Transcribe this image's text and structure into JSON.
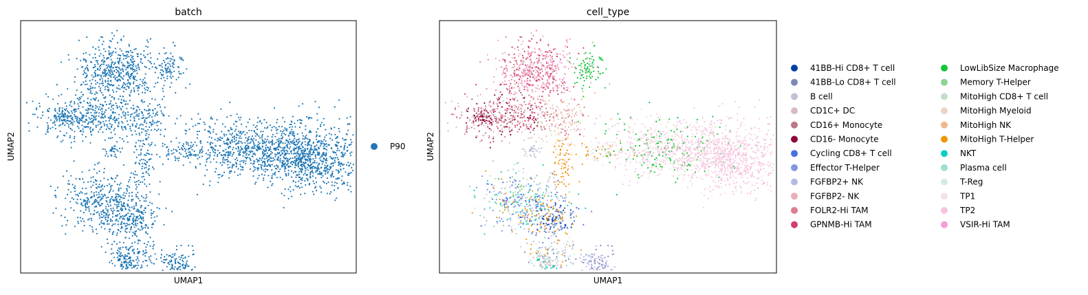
{
  "chart_data": [
    {
      "type": "scatter",
      "title": "batch",
      "xlabel": "UMAP1",
      "ylabel": "UMAP2",
      "grid": false,
      "ticks": false,
      "legend": {
        "placement": "right",
        "columns": 1
      },
      "series": [
        {
          "name": "P90",
          "color": "#1f77b4"
        }
      ]
    },
    {
      "type": "scatter",
      "title": "cell_type",
      "xlabel": "UMAP1",
      "ylabel": "UMAP2",
      "grid": false,
      "ticks": false,
      "legend": {
        "placement": "right",
        "columns": 2
      },
      "series": [
        {
          "name": "41BB-Hi CD8+ T cell",
          "color": "#023fa5"
        },
        {
          "name": "41BB-Lo CD8+ T cell",
          "color": "#7d87b9"
        },
        {
          "name": "B cell",
          "color": "#bec1d4"
        },
        {
          "name": "CD1C+ DC",
          "color": "#d6bcc0"
        },
        {
          "name": "CD16+ Monocyte",
          "color": "#bb7784"
        },
        {
          "name": "CD16- Monocyte",
          "color": "#8e063b"
        },
        {
          "name": "Cycling CD8+ T cell",
          "color": "#4a6fe3"
        },
        {
          "name": "Effector T-Helper",
          "color": "#8595e1"
        },
        {
          "name": "FGFBP2+ NK",
          "color": "#b5bbe3"
        },
        {
          "name": "FGFBP2- NK",
          "color": "#e6afb9"
        },
        {
          "name": "FOLR2-Hi TAM",
          "color": "#e07b91"
        },
        {
          "name": "GPNMB-Hi TAM",
          "color": "#d33f6a"
        },
        {
          "name": "LowLibSize Macrophage",
          "color": "#11c638"
        },
        {
          "name": "Memory T-Helper",
          "color": "#8dd593"
        },
        {
          "name": "MitoHigh CD8+ T cell",
          "color": "#c6dec7"
        },
        {
          "name": "MitoHigh Myeloid",
          "color": "#ead3c6"
        },
        {
          "name": "MitoHigh NK",
          "color": "#f0b98d"
        },
        {
          "name": "MitoHigh T-Helper",
          "color": "#ef9708"
        },
        {
          "name": "NKT",
          "color": "#0fcfc0"
        },
        {
          "name": "Plasma cell",
          "color": "#9cded6"
        },
        {
          "name": "T-Reg",
          "color": "#d5eae7"
        },
        {
          "name": "TP1",
          "color": "#f3e1eb"
        },
        {
          "name": "TP2",
          "color": "#f6c4e1"
        },
        {
          "name": "VSIR-Hi TAM",
          "color": "#f79cd4"
        }
      ]
    }
  ]
}
